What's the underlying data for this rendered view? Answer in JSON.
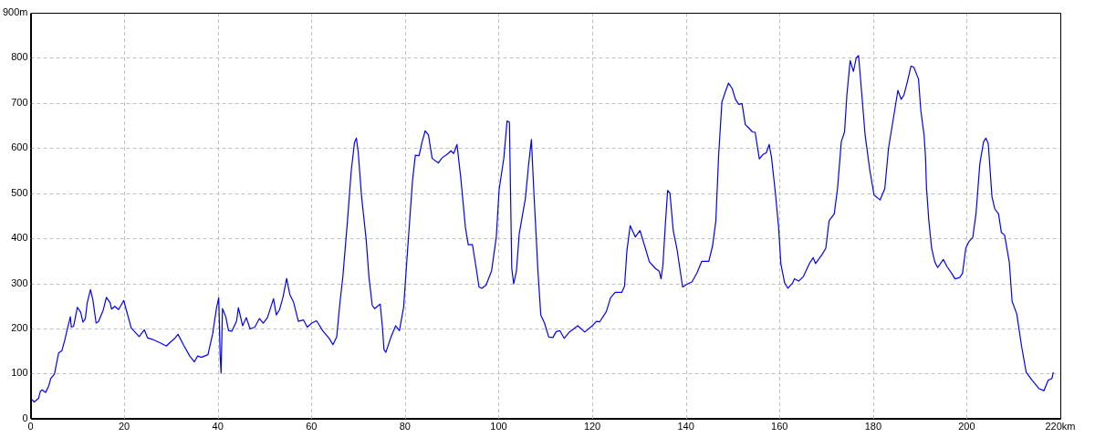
{
  "chart_data": {
    "type": "line",
    "x": [
      0,
      0.8,
      1.7,
      2.1,
      2.5,
      3.2,
      3.9,
      4.3,
      5.1,
      6,
      6.7,
      7.3,
      7.9,
      8.5,
      8.7,
      9.2,
      10,
      10.7,
      11.2,
      11.7,
      12.1,
      12.8,
      13.3,
      14,
      14.5,
      15.5,
      16.2,
      17,
      17.3,
      18,
      18.8,
      19.9,
      20.3,
      21.5,
      23.2,
      24.3,
      25,
      26,
      27.7,
      29,
      29.7,
      30.7,
      31.5,
      32.7,
      34,
      35,
      35.7,
      36.5,
      37.9,
      38.9,
      39.7,
      40.2,
      40.5,
      40.7,
      41,
      41.7,
      42.3,
      43,
      44,
      44.4,
      45.3,
      46.1,
      46.9,
      47.9,
      48.9,
      49.7,
      50.6,
      51.9,
      52.5,
      53.2,
      53.9,
      54.7,
      55.4,
      56.2,
      57.2,
      58.3,
      59.1,
      60.1,
      61.1,
      62.4,
      63.8,
      64.6,
      65.4,
      66.1,
      66.7,
      67.7,
      68.5,
      69.2,
      69.6,
      70,
      70.7,
      71.7,
      72.3,
      73,
      73.5,
      74.7,
      75.2,
      75.5,
      75.9,
      77,
      78,
      78.8,
      79.7,
      80.7,
      81.6,
      82.2,
      83,
      83.6,
      84.3,
      85,
      85.8,
      87.1,
      87.9,
      89.2,
      89.8,
      90.4,
      91.1,
      91.9,
      92.9,
      93.5,
      94.4,
      95.2,
      95.8,
      96.4,
      97.3,
      98.5,
      99.5,
      100.1,
      101.1,
      101.8,
      102.3,
      102.8,
      103.2,
      103.8,
      104.4,
      105.1,
      105.7,
      106.4,
      107,
      107.5,
      108.4,
      109,
      109.8,
      110.7,
      111.6,
      112.3,
      113.1,
      114,
      115.1,
      116.9,
      118.4,
      120,
      120.9,
      121.6,
      123,
      123.9,
      124.9,
      126.3,
      126.9,
      127.4,
      128.1,
      129.2,
      130.2,
      131.2,
      132.2,
      133.5,
      134.3,
      134.7,
      135.1,
      135.6,
      136.1,
      136.6,
      137.3,
      138.1,
      139.3,
      140.4,
      141.3,
      142.4,
      143.4,
      144.9,
      145.7,
      146.4,
      147,
      147.7,
      148.4,
      149.1,
      149.9,
      150.6,
      151.3,
      152,
      152.7,
      153.4,
      154.2,
      154.8,
      155.7,
      156.5,
      157.2,
      157.8,
      158.3,
      159.1,
      159.8,
      160.3,
      161.1,
      161.8,
      162.8,
      163.2,
      164.1,
      165.1,
      166.4,
      167.2,
      167.7,
      169.1,
      169.9,
      170.6,
      171.7,
      172.4,
      173.2,
      173.9,
      174.4,
      175.1,
      175.8,
      176.4,
      176.9,
      177.6,
      178.3,
      179.3,
      180.2,
      181.5,
      182.5,
      183.3,
      184.6,
      185.3,
      186,
      186.6,
      187.3,
      188.1,
      188.7,
      189.7,
      190.2,
      190.9,
      191.2,
      191.4,
      191.9,
      192.5,
      193.2,
      193.8,
      195,
      195.8,
      196.8,
      197.5,
      198.5,
      199.1,
      199.8,
      200.5,
      201.3,
      202,
      202.8,
      203.6,
      204.1,
      204.6,
      205.4,
      206,
      206.8,
      207.4,
      208.1,
      209.1,
      209.7,
      210.7,
      211.7,
      212.7,
      214,
      215.4,
      216.5,
      217.4,
      218.2,
      218.5
    ],
    "series": [
      {
        "color": "#0000ff",
        "values": [
          45,
          37,
          45,
          61,
          64,
          58,
          73,
          89,
          99,
          146,
          151,
          174,
          201,
          226,
          203,
          205,
          247,
          236,
          214,
          222,
          257,
          286,
          264,
          212,
          215,
          240,
          269,
          257,
          243,
          249,
          242,
          262,
          247,
          201,
          182,
          197,
          179,
          176,
          168,
          161,
          168,
          177,
          187,
          163,
          139,
          126,
          139,
          136,
          142,
          188,
          244,
          268,
          140,
          101,
          244,
          226,
          195,
          194,
          216,
          246,
          206,
          224,
          199,
          203,
          222,
          212,
          224,
          266,
          230,
          242,
          268,
          311,
          275,
          258,
          216,
          219,
          203,
          212,
          217,
          195,
          178,
          164,
          181,
          258,
          313,
          438,
          549,
          612,
          622,
          591,
          494,
          397,
          313,
          251,
          244,
          254,
          199,
          153,
          147,
          181,
          206,
          195,
          247,
          397,
          528,
          584,
          583,
          612,
          638,
          629,
          577,
          567,
          578,
          588,
          594,
          588,
          608,
          535,
          424,
          386,
          386,
          334,
          292,
          289,
          296,
          328,
          403,
          508,
          577,
          660,
          657,
          334,
          299,
          327,
          410,
          452,
          487,
          563,
          619,
          508,
          327,
          230,
          212,
          181,
          180,
          193,
          195,
          178,
          192,
          206,
          192,
          206,
          216,
          215,
          237,
          268,
          280,
          280,
          294,
          372,
          428,
          403,
          417,
          383,
          348,
          333,
          327,
          310,
          341,
          428,
          506,
          500,
          417,
          376,
          292,
          299,
          303,
          324,
          349,
          349,
          383,
          438,
          584,
          702,
          724,
          744,
          732,
          708,
          697,
          699,
          652,
          645,
          636,
          635,
          576,
          586,
          590,
          608,
          579,
          503,
          426,
          343,
          301,
          289,
          301,
          310,
          305,
          315,
          344,
          357,
          344,
          364,
          378,
          439,
          454,
          510,
          614,
          636,
          718,
          794,
          770,
          800,
          805,
          718,
          628,
          551,
          496,
          485,
          510,
          600,
          683,
          728,
          708,
          718,
          746,
          782,
          779,
          753,
          683,
          628,
          579,
          513,
          440,
          378,
          347,
          335,
          353,
          337,
          322,
          310,
          313,
          322,
          378,
          393,
          402,
          456,
          565,
          614,
          622,
          610,
          492,
          465,
          454,
          413,
          407,
          347,
          260,
          232,
          162,
          103,
          85,
          67,
          62,
          85,
          89,
          103
        ]
      }
    ],
    "xlim": [
      0,
      220
    ],
    "xticks": [
      0,
      20,
      40,
      60,
      80,
      100,
      120,
      140,
      160,
      180,
      200,
      {
        "value": 220,
        "label": "220km"
      }
    ],
    "ylim": [
      0,
      900
    ],
    "yticks": [
      0,
      100,
      200,
      300,
      400,
      500,
      600,
      700,
      800,
      {
        "value": 900,
        "label": "900m"
      }
    ],
    "grid": true,
    "legend": false,
    "marker": "none",
    "line_style": "solid"
  }
}
